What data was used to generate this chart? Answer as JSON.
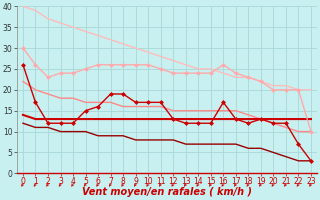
{
  "bg_color": "#c8f0f0",
  "grid_color": "#a8d8d8",
  "xlabel": "Vent moyen/en rafales ( km/h )",
  "xlabel_color": "#cc0000",
  "xlabel_fontsize": 7,
  "xlim": [
    -0.5,
    23.5
  ],
  "ylim": [
    0,
    40
  ],
  "yticks": [
    0,
    5,
    10,
    15,
    20,
    25,
    30,
    35,
    40
  ],
  "xticks": [
    0,
    1,
    2,
    3,
    4,
    5,
    6,
    7,
    8,
    9,
    10,
    11,
    12,
    13,
    14,
    15,
    16,
    17,
    18,
    19,
    20,
    21,
    22,
    23
  ],
  "lines": [
    {
      "x": [
        0,
        1,
        2,
        3,
        4,
        5,
        6,
        7,
        8,
        9,
        10,
        11,
        12,
        13,
        14,
        15,
        16,
        17,
        18,
        19,
        20,
        21,
        22,
        23
      ],
      "y": [
        40,
        39,
        37,
        36,
        35,
        34,
        33,
        32,
        31,
        30,
        29,
        28,
        27,
        26,
        25,
        25,
        24,
        23,
        23,
        22,
        21,
        21,
        20,
        20
      ],
      "color": "#ffbbbb",
      "lw": 1.0,
      "marker": null,
      "zorder": 2
    },
    {
      "x": [
        0,
        1,
        2,
        3,
        4,
        5,
        6,
        7,
        8,
        9,
        10,
        11,
        12,
        13,
        14,
        15,
        16,
        17,
        18,
        19,
        20,
        21,
        22,
        23
      ],
      "y": [
        30,
        26,
        23,
        24,
        24,
        25,
        26,
        26,
        26,
        26,
        26,
        25,
        24,
        24,
        24,
        24,
        26,
        24,
        23,
        22,
        20,
        20,
        20,
        10
      ],
      "color": "#ffaaaa",
      "lw": 1.0,
      "marker": "D",
      "markersize": 2,
      "zorder": 3
    },
    {
      "x": [
        0,
        1,
        2,
        3,
        4,
        5,
        6,
        7,
        8,
        9,
        10,
        11,
        12,
        13,
        14,
        15,
        16,
        17,
        18,
        19,
        20,
        21,
        22,
        23
      ],
      "y": [
        22,
        20,
        19,
        18,
        18,
        17,
        17,
        17,
        16,
        16,
        16,
        16,
        15,
        15,
        15,
        15,
        15,
        15,
        14,
        13,
        12,
        11,
        10,
        10
      ],
      "color": "#ff8888",
      "lw": 1.0,
      "marker": null,
      "zorder": 2
    },
    {
      "x": [
        0,
        1,
        2,
        3,
        4,
        5,
        6,
        7,
        8,
        9,
        10,
        11,
        12,
        13,
        14,
        15,
        16,
        17,
        18,
        19,
        20,
        21,
        22,
        23
      ],
      "y": [
        14,
        13,
        13,
        13,
        13,
        13,
        13,
        13,
        13,
        13,
        13,
        13,
        13,
        13,
        13,
        13,
        13,
        13,
        13,
        13,
        13,
        13,
        13,
        13
      ],
      "color": "#cc0000",
      "lw": 1.5,
      "marker": null,
      "zorder": 2
    },
    {
      "x": [
        0,
        1,
        2,
        3,
        4,
        5,
        6,
        7,
        8,
        9,
        10,
        11,
        12,
        13,
        14,
        15,
        16,
        17,
        18,
        19,
        20,
        21,
        22,
        23
      ],
      "y": [
        26,
        17,
        12,
        12,
        12,
        15,
        16,
        19,
        19,
        17,
        17,
        17,
        13,
        12,
        12,
        12,
        17,
        13,
        12,
        13,
        12,
        12,
        7,
        3
      ],
      "color": "#cc0000",
      "lw": 1.0,
      "marker": "D",
      "markersize": 2,
      "zorder": 4
    },
    {
      "x": [
        0,
        1,
        2,
        3,
        4,
        5,
        6,
        7,
        8,
        9,
        10,
        11,
        12,
        13,
        14,
        15,
        16,
        17,
        18,
        19,
        20,
        21,
        22,
        23
      ],
      "y": [
        12,
        11,
        11,
        10,
        10,
        10,
        9,
        9,
        9,
        8,
        8,
        8,
        8,
        7,
        7,
        7,
        7,
        7,
        6,
        6,
        5,
        4,
        3,
        3
      ],
      "color": "#990000",
      "lw": 1.0,
      "marker": null,
      "zorder": 2
    }
  ],
  "tick_label_fontsize": 5.5,
  "ytick_label_fontsize": 5.5,
  "arrow_color": "#cc0000"
}
